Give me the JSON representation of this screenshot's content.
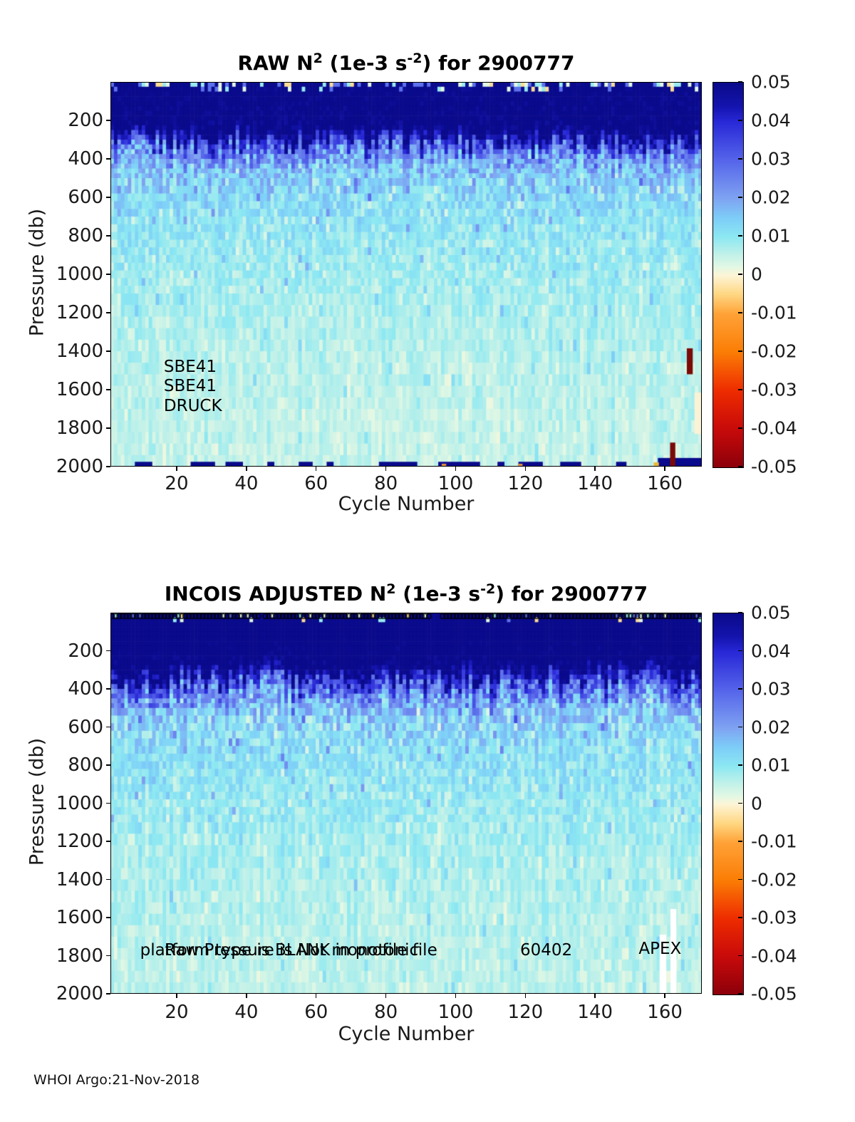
{
  "footer": "WHOI Argo:21-Nov-2018",
  "colormap_stops": [
    {
      "v": 0.05,
      "c": "#0a0a8c"
    },
    {
      "v": 0.044,
      "c": "#1414ad"
    },
    {
      "v": 0.04,
      "c": "#2828d7"
    },
    {
      "v": 0.03,
      "c": "#5564ea"
    },
    {
      "v": 0.02,
      "c": "#7fa3f2"
    },
    {
      "v": 0.015,
      "c": "#7dcdf8"
    },
    {
      "v": 0.01,
      "c": "#8ce8f2"
    },
    {
      "v": 0.005,
      "c": "#c6f2e8"
    },
    {
      "v": 0.002,
      "c": "#e4f8e4"
    },
    {
      "v": 0.0,
      "c": "#fdf5d7"
    },
    {
      "v": -0.005,
      "c": "#ffd782"
    },
    {
      "v": -0.01,
      "c": "#ffa238"
    },
    {
      "v": -0.02,
      "c": "#fb7d05"
    },
    {
      "v": -0.03,
      "c": "#ee2c00"
    },
    {
      "v": -0.04,
      "c": "#c80a0a"
    },
    {
      "v": -0.05,
      "c": "#8c000a"
    }
  ],
  "chart_data": [
    {
      "id": "raw",
      "type": "heatmap",
      "title_segments": [
        {
          "text": "RAW N",
          "sup": false
        },
        {
          "text": "2",
          "sup": true
        },
        {
          "text": " (1e-3 s",
          "sup": false
        },
        {
          "text": "-2",
          "sup": true
        },
        {
          "text": ") for 2900777",
          "sup": false
        }
      ],
      "xlabel": "Cycle Number",
      "ylabel": "Pressure (db)",
      "x_ticks": [
        20,
        40,
        60,
        80,
        100,
        120,
        140,
        160
      ],
      "y_ticks": [
        200,
        400,
        600,
        800,
        1000,
        1200,
        1400,
        1600,
        1800,
        2000
      ],
      "x_range": [
        1,
        170.6
      ],
      "y_range": [
        0,
        2000
      ],
      "colorbar_ticks": [
        "0.05",
        "0.04",
        "0.03",
        "0.02",
        "0.01",
        "0",
        "-0.01",
        "-0.02",
        "-0.03",
        "-0.04",
        "-0.05"
      ],
      "colorbar_range": [
        -0.05,
        0.05
      ],
      "annotations": [
        {
          "text": "SBE41",
          "cycle": 16.3,
          "pressure": 1480
        },
        {
          "text": "SBE41",
          "cycle": 16.3,
          "pressure": 1582
        },
        {
          "text": "DRUCK",
          "cycle": 16.3,
          "pressure": 1685
        }
      ],
      "depth_profile": [
        [
          0,
          0.052
        ],
        [
          270,
          0.052
        ],
        [
          340,
          0.03
        ],
        [
          420,
          0.018
        ],
        [
          520,
          0.0135
        ],
        [
          700,
          0.011
        ],
        [
          1000,
          0.0085
        ],
        [
          1400,
          0.0065
        ],
        [
          2000,
          0.005
        ]
      ],
      "noise_profile": [
        [
          0,
          0.004
        ],
        [
          260,
          0.006
        ],
        [
          300,
          0.012
        ],
        [
          500,
          0.007
        ],
        [
          700,
          0.004
        ],
        [
          1200,
          0.0025
        ],
        [
          2000,
          0.002
        ]
      ],
      "jitter": {
        "min_p": 80,
        "max_p": 650,
        "amp": 65
      },
      "surface": {
        "d1": 28,
        "prob1": 1.0,
        "d2": 55,
        "prob2": 0.28
      },
      "top_markers": null,
      "special_marks": [
        {
          "c0": 8,
          "c1": 13,
          "p0": 1975,
          "p1": 2000,
          "color": "#0a0a8c"
        },
        {
          "c0": 24,
          "c1": 31,
          "p0": 1975,
          "p1": 2000,
          "color": "#0a0a8c"
        },
        {
          "c0": 34,
          "c1": 39,
          "p0": 1975,
          "p1": 2000,
          "color": "#0a0a8c"
        },
        {
          "c0": 46,
          "c1": 48,
          "p0": 1975,
          "p1": 2000,
          "color": "#0a0a8c"
        },
        {
          "c0": 55,
          "c1": 59,
          "p0": 1975,
          "p1": 2000,
          "color": "#0a0a8c"
        },
        {
          "c0": 63,
          "c1": 65,
          "p0": 1975,
          "p1": 2000,
          "color": "#0a0a8c"
        },
        {
          "c0": 78,
          "c1": 89,
          "p0": 1975,
          "p1": 2000,
          "color": "#0a0a8c"
        },
        {
          "c0": 95,
          "c1": 107,
          "p0": 1975,
          "p1": 2000,
          "color": "#0a0a8c"
        },
        {
          "c0": 112,
          "c1": 114,
          "p0": 1975,
          "p1": 2000,
          "color": "#0a0a8c"
        },
        {
          "c0": 118,
          "c1": 125,
          "p0": 1975,
          "p1": 2000,
          "color": "#0a0a8c"
        },
        {
          "c0": 130,
          "c1": 136,
          "p0": 1975,
          "p1": 2000,
          "color": "#0a0a8c"
        },
        {
          "c0": 146,
          "c1": 149,
          "p0": 1975,
          "p1": 2000,
          "color": "#0a0a8c"
        },
        {
          "c0": 158,
          "c1": 170.6,
          "p0": 1955,
          "p1": 2000,
          "color": "#0a0a8c"
        },
        {
          "c0": 166.3,
          "c1": 168,
          "p0": 1385,
          "p1": 1520,
          "color": "#7a0a08"
        },
        {
          "c0": 161.5,
          "c1": 163,
          "p0": 1875,
          "p1": 2000,
          "color": "#7a0a08"
        },
        {
          "c0": 156.8,
          "c1": 158.3,
          "p0": 1978,
          "p1": 2000,
          "color": "#e8b83c"
        },
        {
          "c0": 96,
          "c1": 97.3,
          "p0": 1985,
          "p1": 2000,
          "color": "#e89040"
        },
        {
          "c0": 118,
          "c1": 119.2,
          "p0": 1985,
          "p1": 2000,
          "color": "#e89040"
        },
        {
          "c0": 168.5,
          "c1": 170.6,
          "p0": 1615,
          "p1": 1830,
          "color": "#fbf3d5"
        }
      ]
    },
    {
      "id": "adjusted",
      "type": "heatmap",
      "title_segments": [
        {
          "text": "INCOIS  ADJUSTED N",
          "sup": false
        },
        {
          "text": "2",
          "sup": true
        },
        {
          "text": " (1e-3 s",
          "sup": false
        },
        {
          "text": "-2",
          "sup": true
        },
        {
          "text": ") for 2900777",
          "sup": false
        }
      ],
      "xlabel": "Cycle Number",
      "ylabel": "Pressure (db)",
      "x_ticks": [
        20,
        40,
        60,
        80,
        100,
        120,
        140,
        160
      ],
      "y_ticks": [
        200,
        400,
        600,
        800,
        1000,
        1200,
        1400,
        1600,
        1800,
        2000
      ],
      "x_range": [
        1,
        170.6
      ],
      "y_range": [
        0,
        2000
      ],
      "colorbar_ticks": [
        "0.05",
        "0.04",
        "0.03",
        "0.02",
        "0.01",
        "0",
        "-0.01",
        "-0.02",
        "-0.03",
        "-0.04",
        "-0.05"
      ],
      "colorbar_range": [
        -0.05,
        0.05
      ],
      "annotations": [
        {
          "text": "platform type is BLANK in profile file",
          "cycle": 9.5,
          "pressure": 1773
        },
        {
          "text": "Raw Pressure is Not monotonic",
          "cycle": 16.5,
          "pressure": 1773
        },
        {
          "text": "60402",
          "cycle": 118.5,
          "pressure": 1773
        },
        {
          "text": "APEX",
          "cycle": 152.5,
          "pressure": 1765
        }
      ],
      "depth_profile": [
        [
          0,
          0.055
        ],
        [
          300,
          0.053
        ],
        [
          390,
          0.03
        ],
        [
          480,
          0.018
        ],
        [
          560,
          0.014
        ],
        [
          700,
          0.012
        ],
        [
          1000,
          0.009
        ],
        [
          1400,
          0.007
        ],
        [
          2000,
          0.0055
        ]
      ],
      "noise_profile": [
        [
          0,
          0.003
        ],
        [
          290,
          0.007
        ],
        [
          340,
          0.013
        ],
        [
          550,
          0.008
        ],
        [
          750,
          0.0045
        ],
        [
          1200,
          0.003
        ],
        [
          2000,
          0.002
        ]
      ],
      "jitter": {
        "min_p": 150,
        "max_p": 650,
        "amp": 75
      },
      "surface": {
        "d1": 28,
        "prob1": 0.26,
        "d2": 55,
        "prob2": 0.1
      },
      "top_markers": {
        "shape": "circle",
        "pressure": 10,
        "gaps": [
          44,
          93,
          94,
          95
        ]
      },
      "special_marks": [
        {
          "c0": 158.5,
          "c1": 160.4,
          "p0": 1690,
          "p1": 2000,
          "color": "#ffffff"
        },
        {
          "c0": 161.6,
          "c1": 163.3,
          "p0": 1555,
          "p1": 2000,
          "color": "#ffffff"
        }
      ]
    }
  ]
}
